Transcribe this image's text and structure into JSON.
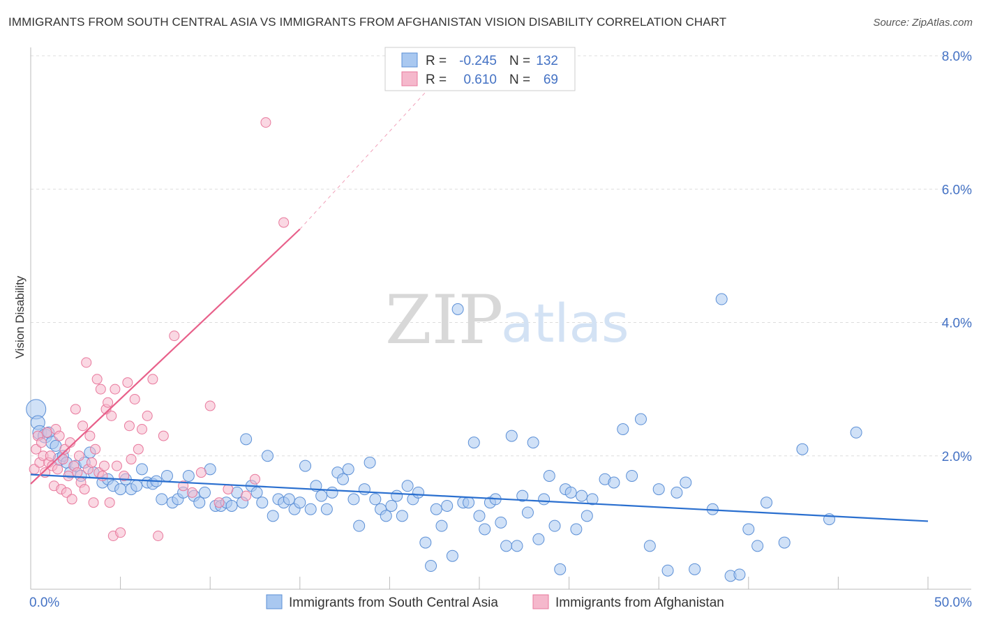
{
  "title": "IMMIGRANTS FROM SOUTH CENTRAL ASIA VS IMMIGRANTS FROM AFGHANISTAN VISION DISABILITY CORRELATION CHART",
  "source": "Source: ZipAtlas.com",
  "watermark": {
    "zip": "ZIP",
    "atlas": "atlas"
  },
  "colors": {
    "blue_fill": "#a9c8f0",
    "blue_stroke": "#5b8fd6",
    "blue_line": "#2a6fcf",
    "pink_fill": "#f5b8cc",
    "pink_stroke": "#e8789c",
    "pink_line": "#e8608a",
    "grid": "#dddddd",
    "axis_text": "#4472c4"
  },
  "legend": {
    "rows": [
      {
        "r_label": "R =",
        "r_value": "-0.245",
        "n_label": "N =",
        "n_value": "132"
      },
      {
        "r_label": "R =",
        "r_value": "0.610",
        "n_label": "N =",
        "n_value": "69"
      }
    ]
  },
  "chart_data": {
    "type": "scatter",
    "ylabel": "Vision Disability",
    "xlim": [
      0,
      50
    ],
    "ylim": [
      0,
      8
    ],
    "y_ticks": [
      {
        "value": 2,
        "label": "2.0%"
      },
      {
        "value": 4,
        "label": "4.0%"
      },
      {
        "value": 6,
        "label": "6.0%"
      },
      {
        "value": 8,
        "label": "8.0%"
      }
    ],
    "x_tick_labels": [
      {
        "value": 0,
        "label": "0.0%"
      },
      {
        "value": 50,
        "label": "50.0%"
      }
    ],
    "grid": "horizontal dashed",
    "series": [
      {
        "name": "Immigrants from South Central Asia",
        "color": "blue",
        "trend": {
          "x0": 0,
          "y0": 1.72,
          "x1": 50,
          "y1": 1.02
        },
        "points": [
          [
            0.3,
            2.7,
            14
          ],
          [
            0.4,
            2.5,
            10
          ],
          [
            0.5,
            2.35,
            10
          ],
          [
            0.8,
            2.3,
            10
          ],
          [
            1.0,
            2.35,
            8
          ],
          [
            1.2,
            2.2,
            9
          ],
          [
            1.4,
            2.15,
            8
          ],
          [
            1.6,
            1.95,
            9
          ],
          [
            1.8,
            2.0,
            8
          ],
          [
            2.0,
            1.9,
            8
          ],
          [
            2.2,
            1.75,
            8
          ],
          [
            2.5,
            1.85,
            8
          ],
          [
            2.8,
            1.7,
            8
          ],
          [
            3.0,
            1.9,
            8
          ],
          [
            3.3,
            2.05,
            8
          ],
          [
            3.5,
            1.75,
            8
          ],
          [
            4.0,
            1.6,
            8
          ],
          [
            4.3,
            1.65,
            8
          ],
          [
            4.6,
            1.55,
            8
          ],
          [
            5.0,
            1.5,
            8
          ],
          [
            5.3,
            1.65,
            8
          ],
          [
            5.6,
            1.5,
            8
          ],
          [
            5.9,
            1.55,
            8
          ],
          [
            6.2,
            1.8,
            8
          ],
          [
            6.5,
            1.6,
            8
          ],
          [
            6.8,
            1.58,
            8
          ],
          [
            7.0,
            1.62,
            8
          ],
          [
            7.3,
            1.35,
            8
          ],
          [
            7.6,
            1.7,
            8
          ],
          [
            7.9,
            1.3,
            8
          ],
          [
            8.2,
            1.35,
            8
          ],
          [
            8.5,
            1.45,
            8
          ],
          [
            8.8,
            1.7,
            8
          ],
          [
            9.1,
            1.4,
            8
          ],
          [
            9.4,
            1.3,
            8
          ],
          [
            9.7,
            1.45,
            8
          ],
          [
            10.0,
            1.8,
            8
          ],
          [
            10.3,
            1.25,
            8
          ],
          [
            10.6,
            1.25,
            8
          ],
          [
            10.9,
            1.3,
            8
          ],
          [
            11.2,
            1.25,
            8
          ],
          [
            11.5,
            1.45,
            8
          ],
          [
            11.8,
            1.3,
            8
          ],
          [
            12.0,
            2.25,
            8
          ],
          [
            12.3,
            1.55,
            8
          ],
          [
            12.6,
            1.45,
            8
          ],
          [
            12.9,
            1.3,
            8
          ],
          [
            13.2,
            2.0,
            8
          ],
          [
            13.5,
            1.1,
            8
          ],
          [
            13.8,
            1.35,
            8
          ],
          [
            14.1,
            1.3,
            8
          ],
          [
            14.4,
            1.35,
            8
          ],
          [
            14.7,
            1.2,
            8
          ],
          [
            15.0,
            1.3,
            8
          ],
          [
            15.3,
            1.85,
            8
          ],
          [
            15.6,
            1.2,
            8
          ],
          [
            15.9,
            1.55,
            8
          ],
          [
            16.2,
            1.4,
            8
          ],
          [
            16.5,
            1.2,
            8
          ],
          [
            16.8,
            1.45,
            8
          ],
          [
            17.1,
            1.75,
            8
          ],
          [
            17.4,
            1.65,
            8
          ],
          [
            17.7,
            1.8,
            8
          ],
          [
            18.0,
            1.35,
            8
          ],
          [
            18.3,
            0.95,
            8
          ],
          [
            18.6,
            1.5,
            8
          ],
          [
            18.9,
            1.9,
            8
          ],
          [
            19.2,
            1.35,
            8
          ],
          [
            19.5,
            1.2,
            8
          ],
          [
            19.8,
            1.1,
            8
          ],
          [
            20.1,
            1.25,
            8
          ],
          [
            20.4,
            1.4,
            8
          ],
          [
            20.7,
            1.1,
            8
          ],
          [
            21.0,
            1.55,
            8
          ],
          [
            21.3,
            1.35,
            8
          ],
          [
            21.6,
            1.45,
            8
          ],
          [
            22.0,
            0.7,
            8
          ],
          [
            22.3,
            0.35,
            8
          ],
          [
            22.6,
            1.2,
            8
          ],
          [
            22.9,
            0.95,
            8
          ],
          [
            23.2,
            1.25,
            8
          ],
          [
            23.5,
            0.5,
            8
          ],
          [
            23.8,
            4.2,
            8
          ],
          [
            24.1,
            1.3,
            8
          ],
          [
            24.4,
            1.3,
            8
          ],
          [
            24.7,
            2.2,
            8
          ],
          [
            25.0,
            1.1,
            8
          ],
          [
            25.3,
            0.9,
            8
          ],
          [
            25.6,
            1.3,
            8
          ],
          [
            25.9,
            1.35,
            8
          ],
          [
            26.2,
            1.0,
            8
          ],
          [
            26.5,
            0.65,
            8
          ],
          [
            26.8,
            2.3,
            8
          ],
          [
            27.1,
            0.65,
            8
          ],
          [
            27.4,
            1.4,
            8
          ],
          [
            27.7,
            1.15,
            8
          ],
          [
            28.0,
            2.2,
            8
          ],
          [
            28.3,
            0.75,
            8
          ],
          [
            28.6,
            1.35,
            8
          ],
          [
            28.9,
            1.7,
            8
          ],
          [
            29.2,
            0.95,
            8
          ],
          [
            29.5,
            0.3,
            8
          ],
          [
            29.8,
            1.5,
            8
          ],
          [
            30.1,
            1.45,
            8
          ],
          [
            30.4,
            0.9,
            8
          ],
          [
            30.7,
            1.4,
            8
          ],
          [
            31.0,
            1.1,
            8
          ],
          [
            31.3,
            1.35,
            8
          ],
          [
            32.0,
            1.65,
            8
          ],
          [
            32.5,
            1.6,
            8
          ],
          [
            33.0,
            2.4,
            8
          ],
          [
            33.5,
            1.7,
            8
          ],
          [
            34.0,
            2.55,
            8
          ],
          [
            34.5,
            0.65,
            8
          ],
          [
            35.0,
            1.5,
            8
          ],
          [
            35.5,
            0.28,
            8
          ],
          [
            36.0,
            1.45,
            8
          ],
          [
            36.5,
            1.6,
            8
          ],
          [
            37.0,
            0.3,
            8
          ],
          [
            38.0,
            1.2,
            8
          ],
          [
            38.5,
            4.35,
            8
          ],
          [
            39.0,
            0.2,
            8
          ],
          [
            39.5,
            0.22,
            8
          ],
          [
            40.0,
            0.9,
            8
          ],
          [
            40.5,
            0.65,
            8
          ],
          [
            41.0,
            1.3,
            8
          ],
          [
            42.0,
            0.7,
            8
          ],
          [
            43.0,
            2.1,
            8
          ],
          [
            44.5,
            1.05,
            8
          ],
          [
            46.0,
            2.35,
            8
          ]
        ]
      },
      {
        "name": "Immigrants from Afghanistan",
        "color": "pink",
        "trend": {
          "x0": 0,
          "y0": 1.58,
          "x1": 15,
          "y1": 5.4,
          "dashed_to": {
            "x": 22.5,
            "y": 7.6
          }
        },
        "points": [
          [
            0.2,
            1.8,
            7
          ],
          [
            0.3,
            2.1,
            7
          ],
          [
            0.4,
            2.3,
            7
          ],
          [
            0.5,
            1.9,
            7
          ],
          [
            0.6,
            2.2,
            7
          ],
          [
            0.7,
            2.0,
            7
          ],
          [
            0.8,
            1.75,
            7
          ],
          [
            0.9,
            2.35,
            7
          ],
          [
            1.0,
            1.9,
            7
          ],
          [
            1.1,
            2.0,
            7
          ],
          [
            1.2,
            1.85,
            7
          ],
          [
            1.3,
            1.55,
            7
          ],
          [
            1.4,
            2.4,
            7
          ],
          [
            1.5,
            1.8,
            7
          ],
          [
            1.6,
            2.3,
            7
          ],
          [
            1.7,
            1.5,
            7
          ],
          [
            1.8,
            1.95,
            7
          ],
          [
            1.9,
            2.1,
            7
          ],
          [
            2.0,
            1.45,
            7
          ],
          [
            2.1,
            1.7,
            7
          ],
          [
            2.2,
            2.2,
            7
          ],
          [
            2.3,
            1.35,
            7
          ],
          [
            2.4,
            1.85,
            7
          ],
          [
            2.5,
            2.7,
            7
          ],
          [
            2.6,
            1.75,
            7
          ],
          [
            2.7,
            2.0,
            7
          ],
          [
            2.8,
            1.6,
            7
          ],
          [
            2.9,
            2.45,
            7
          ],
          [
            3.0,
            1.5,
            7
          ],
          [
            3.1,
            3.4,
            7
          ],
          [
            3.2,
            1.8,
            7
          ],
          [
            3.3,
            2.3,
            7
          ],
          [
            3.4,
            1.9,
            7
          ],
          [
            3.5,
            1.3,
            7
          ],
          [
            3.6,
            2.1,
            7
          ],
          [
            3.7,
            3.15,
            7
          ],
          [
            3.8,
            1.75,
            7
          ],
          [
            3.9,
            3.0,
            7
          ],
          [
            4.0,
            1.7,
            7
          ],
          [
            4.1,
            1.85,
            7
          ],
          [
            4.2,
            2.7,
            7
          ],
          [
            4.3,
            2.8,
            7
          ],
          [
            4.4,
            1.3,
            7
          ],
          [
            4.5,
            2.6,
            7
          ],
          [
            4.6,
            0.8,
            7
          ],
          [
            4.7,
            3.0,
            7
          ],
          [
            4.8,
            1.85,
            7
          ],
          [
            5.0,
            0.85,
            7
          ],
          [
            5.2,
            1.7,
            7
          ],
          [
            5.4,
            3.1,
            7
          ],
          [
            5.5,
            2.45,
            7
          ],
          [
            5.6,
            1.95,
            7
          ],
          [
            5.8,
            2.85,
            7
          ],
          [
            6.0,
            2.1,
            7
          ],
          [
            6.2,
            2.4,
            7
          ],
          [
            6.5,
            2.6,
            7
          ],
          [
            6.8,
            3.15,
            7
          ],
          [
            7.1,
            0.8,
            7
          ],
          [
            7.4,
            2.3,
            7
          ],
          [
            8.0,
            3.8,
            7
          ],
          [
            8.5,
            1.55,
            7
          ],
          [
            9.0,
            1.45,
            7
          ],
          [
            9.5,
            1.75,
            7
          ],
          [
            10.0,
            2.75,
            7
          ],
          [
            10.5,
            1.3,
            7
          ],
          [
            11.0,
            1.5,
            7
          ],
          [
            12.0,
            1.4,
            7
          ],
          [
            12.5,
            1.65,
            7
          ],
          [
            13.1,
            7.0,
            7
          ],
          [
            14.1,
            5.5,
            7
          ]
        ]
      }
    ]
  }
}
